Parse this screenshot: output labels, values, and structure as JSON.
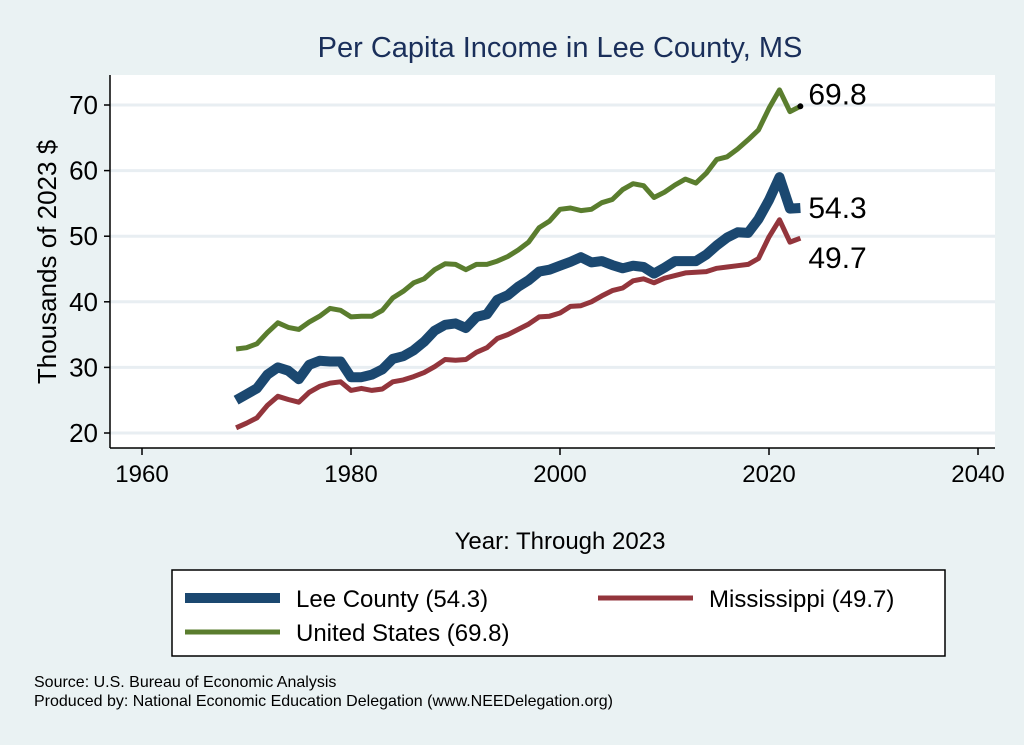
{
  "chart_data": {
    "type": "line",
    "title": "Per Capita Income in Lee County, MS",
    "xlabel": "Year: Through 2023",
    "ylabel": "Thousands of 2023 $",
    "xlim": [
      1960,
      2040
    ],
    "ylim": [
      20,
      70
    ],
    "xticks": [
      1960,
      1980,
      2000,
      2020,
      2040
    ],
    "yticks": [
      20,
      30,
      40,
      50,
      60,
      70
    ],
    "grid": true,
    "legend_position": "bottom",
    "x": [
      1969,
      1970,
      1971,
      1972,
      1973,
      1974,
      1975,
      1976,
      1977,
      1978,
      1979,
      1980,
      1981,
      1982,
      1983,
      1984,
      1985,
      1986,
      1987,
      1988,
      1989,
      1990,
      1991,
      1992,
      1993,
      1994,
      1995,
      1996,
      1997,
      1998,
      1999,
      2000,
      2001,
      2002,
      2003,
      2004,
      2005,
      2006,
      2007,
      2008,
      2009,
      2010,
      2011,
      2012,
      2013,
      2014,
      2015,
      2016,
      2017,
      2018,
      2019,
      2020,
      2021,
      2022,
      2023
    ],
    "series": [
      {
        "name": "United States",
        "legend": "United States (69.8)",
        "end_label": "69.8",
        "color": "#5a7d2e",
        "values": [
          32.8,
          33.0,
          33.6,
          35.3,
          36.8,
          36.1,
          35.8,
          36.9,
          37.8,
          39.0,
          38.7,
          37.7,
          37.8,
          37.8,
          38.7,
          40.6,
          41.6,
          42.9,
          43.5,
          44.9,
          45.8,
          45.7,
          44.9,
          45.7,
          45.7,
          46.2,
          46.9,
          47.9,
          49.1,
          51.3,
          52.3,
          54.1,
          54.3,
          53.9,
          54.1,
          55.1,
          55.6,
          57.1,
          58.0,
          57.7,
          55.9,
          56.7,
          57.8,
          58.7,
          58.1,
          59.6,
          61.7,
          62.1,
          63.3,
          64.7,
          66.2,
          69.5,
          72.3,
          69.0,
          69.8
        ]
      },
      {
        "name": "Lee County",
        "legend": "Lee County (54.3)",
        "end_label": "54.3",
        "color": "#1b4870",
        "values": [
          25.0,
          25.9,
          26.8,
          28.9,
          30.0,
          29.5,
          28.2,
          30.4,
          31.0,
          30.9,
          30.9,
          28.5,
          28.5,
          28.9,
          29.7,
          31.3,
          31.7,
          32.6,
          33.9,
          35.6,
          36.5,
          36.7,
          36.0,
          37.7,
          38.1,
          40.3,
          41.0,
          42.3,
          43.3,
          44.6,
          44.9,
          45.5,
          46.1,
          46.8,
          46.0,
          46.2,
          45.6,
          45.1,
          45.5,
          45.3,
          44.3,
          45.2,
          46.2,
          46.2,
          46.2,
          47.2,
          48.6,
          49.8,
          50.6,
          50.5,
          52.6,
          55.5,
          59.0,
          54.2,
          54.3
        ]
      },
      {
        "name": "Mississippi",
        "legend": "Mississippi (49.7)",
        "end_label": "49.7",
        "color": "#93353c",
        "values": [
          20.8,
          21.5,
          22.3,
          24.2,
          25.6,
          25.1,
          24.7,
          26.2,
          27.1,
          27.6,
          27.8,
          26.5,
          26.8,
          26.5,
          26.7,
          27.8,
          28.1,
          28.6,
          29.2,
          30.1,
          31.2,
          31.1,
          31.2,
          32.3,
          33.0,
          34.4,
          35.0,
          35.8,
          36.6,
          37.7,
          37.8,
          38.3,
          39.3,
          39.4,
          40.0,
          40.9,
          41.7,
          42.1,
          43.2,
          43.5,
          42.9,
          43.6,
          44.0,
          44.4,
          44.5,
          44.6,
          45.1,
          45.3,
          45.5,
          45.7,
          46.6,
          49.9,
          52.5,
          49.1,
          49.7
        ]
      }
    ]
  },
  "notes": {
    "source": "Source: U.S. Bureau of Economic Analysis",
    "produced_by": "Produced by: National Economic Education Delegation (www.NEEDelegation.org)"
  }
}
